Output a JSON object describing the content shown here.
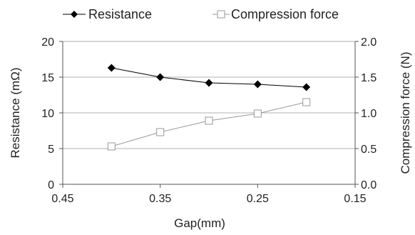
{
  "chart_data": {
    "type": "line",
    "title": "",
    "xlabel": "Gap(mm)",
    "ylabel": "Resistance (mΩ)",
    "y2label": "Compression force (N)",
    "x_reversed": true,
    "xlim": [
      0.45,
      0.15
    ],
    "ylim": [
      0,
      20
    ],
    "y2lim": [
      0,
      2.0
    ],
    "x_ticks": [
      "0.45",
      "0.35",
      "0.25",
      "0.15"
    ],
    "y_ticks": [
      "0",
      "5",
      "10",
      "15",
      "20"
    ],
    "y2_ticks": [
      "0.0",
      "0.5",
      "1.0",
      "1.5",
      "2.0"
    ],
    "grid": "horizontal",
    "legend_position": "top",
    "series": [
      {
        "name": "Resistance",
        "axis": "left",
        "marker": "filled-diamond",
        "color": "#000000",
        "x": [
          0.4,
          0.35,
          0.3,
          0.25,
          0.2
        ],
        "values": [
          16.3,
          15.0,
          14.2,
          14.0,
          13.6
        ]
      },
      {
        "name": "Compression force",
        "axis": "right",
        "marker": "open-square",
        "color": "#999999",
        "x": [
          0.4,
          0.35,
          0.3,
          0.25,
          0.2
        ],
        "values": [
          0.53,
          0.73,
          0.89,
          0.99,
          1.15
        ]
      }
    ]
  }
}
